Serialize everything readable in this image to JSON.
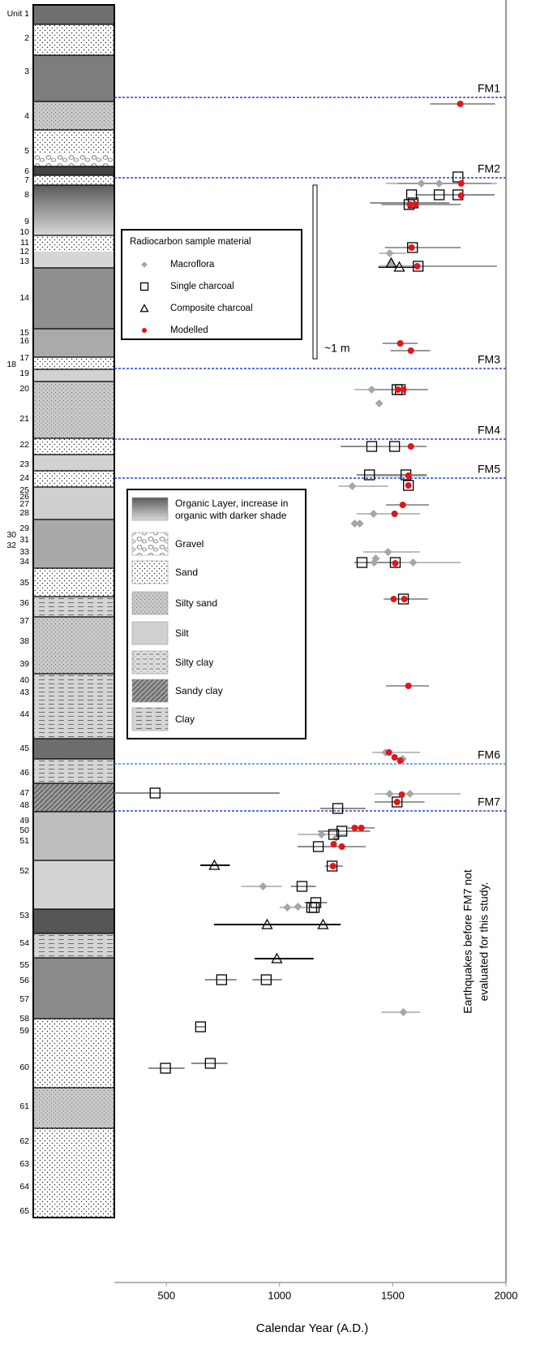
{
  "chart_data": {
    "type": "scatter",
    "x_label": "Calendar Year (A.D.)",
    "xlim": [
      270,
      2000
    ],
    "xticks": [
      500,
      1000,
      1500,
      2000
    ],
    "units": [
      "Unit 1",
      "2",
      "3",
      "4",
      "5",
      "6",
      "7",
      "8",
      "9",
      "10",
      "11",
      "12",
      "13",
      "14",
      "15",
      "16",
      "17",
      "18",
      "19",
      "20",
      "21",
      "22",
      "23",
      "24",
      "25",
      "26",
      "27",
      "28",
      "29",
      "30",
      "31",
      "32",
      "33",
      "34",
      "35",
      "36",
      "37",
      "38",
      "39",
      "40",
      "43",
      "44",
      "45",
      "46",
      "47",
      "48",
      "49",
      "50",
      "51",
      "52",
      "53",
      "54",
      "55",
      "56",
      "57",
      "58",
      "59",
      "60",
      "61",
      "62",
      "63",
      "64",
      "65"
    ],
    "events": [
      "FM1",
      "FM2",
      "FM3",
      "FM4",
      "FM5",
      "FM6",
      "FM7"
    ],
    "legend_title": "Radiocarbon sample material",
    "series": [
      {
        "name": "Macroflora",
        "marker": "diamond",
        "color": "#a6a6a6",
        "range_color": "#bdbdbd",
        "x": [
          1626,
          1705,
          1486,
          1493,
          1407,
          1440,
          1321,
          1415,
          1354,
          1332,
          1479,
          1425,
          1418,
          1590,
          1468,
          1544,
          1486,
          1576,
          1185,
          1250,
          927,
          1034,
          1081,
          1547
        ],
        "ranges": [
          [
            1470,
            1960
          ],
          null,
          [
            1440,
            1560
          ],
          null,
          [
            1330,
            1530
          ],
          null,
          [
            1260,
            1480
          ],
          [
            1340,
            1620
          ],
          null,
          null,
          [
            1370,
            1620
          ],
          null,
          null,
          [
            1420,
            1800
          ],
          [
            1410,
            1620
          ],
          null,
          [
            1420,
            1800
          ],
          null,
          [
            1080,
            1300
          ],
          null,
          [
            830,
            1010
          ],
          [
            1000,
            1130
          ],
          null,
          [
            1450,
            1620
          ]
        ]
      },
      {
        "name": "Single charcoal",
        "marker": "square",
        "color": "#000000",
        "range_color": "#8c8c8c",
        "x": [
          1788,
          1788,
          1705,
          1583,
          1590,
          1572,
          1587,
          1612,
          1519,
          1533,
          1407,
          1508,
          1397,
          1558,
          1569,
          1364,
          1511,
          1547,
          450,
          1519,
          1257,
          1275,
          1239,
          1171,
          1232,
          1099,
          1160,
          1153,
          1142,
          744,
          941,
          651,
          694,
          496
        ],
        "ranges": [
          null,
          [
            1600,
            1950
          ],
          null,
          null,
          [
            1400,
            1750
          ],
          null,
          null,
          null,
          null,
          null,
          [
            1270,
            1560
          ],
          null,
          [
            1340,
            1530
          ],
          [
            1440,
            1650
          ],
          null,
          [
            1330,
            1530
          ],
          null,
          null,
          [
            270,
            1000
          ],
          null,
          [
            1180,
            1380
          ],
          [
            1170,
            1400
          ],
          null,
          [
            1080,
            1300
          ],
          null,
          [
            1050,
            1160
          ],
          [
            1110,
            1210
          ],
          null,
          null,
          [
            670,
            810
          ],
          [
            880,
            1010
          ],
          [
            630,
            670
          ],
          [
            610,
            770
          ],
          [
            420,
            580
          ]
        ]
      },
      {
        "name": "Composite charcoal",
        "marker": "triangle",
        "color": "#000000",
        "range_color": "#000000",
        "x": [
          1493,
          1529,
          712,
          945,
          1192,
          988
        ],
        "ranges": [
          null,
          [
            1437,
            1612
          ],
          [
            650,
            780
          ],
          [
            710,
            1270
          ],
          null,
          [
            890,
            1150
          ]
        ]
      },
      {
        "name": "Modelled",
        "marker": "dot",
        "color": "#e0161b",
        "range_color": "#9a9a9a",
        "x": [
          1798,
          1802,
          1802,
          1576,
          1601,
          1583,
          1608,
          1533,
          1580,
          1522,
          1547,
          1580,
          1569,
          1569,
          1544,
          1508,
          1511,
          1504,
          1551,
          1569,
          1483,
          1508,
          1533,
          1540,
          1519,
          1332,
          1361,
          1239,
          1275,
          1236
        ],
        "ranges": [
          [
            1665,
            1952
          ],
          [
            1522,
            1935
          ],
          null,
          [
            1450,
            1800
          ],
          null,
          [
            1465,
            1800
          ],
          [
            1440,
            1960
          ],
          [
            1455,
            1610
          ],
          [
            1490,
            1665
          ],
          null,
          [
            1410,
            1655
          ],
          [
            1370,
            1650
          ],
          [
            1380,
            1650
          ],
          null,
          [
            1470,
            1660
          ],
          null,
          null,
          [
            1460,
            1655
          ],
          null,
          [
            1470,
            1660
          ],
          null,
          null,
          null,
          null,
          [
            1420,
            1640
          ],
          null,
          [
            1300,
            1420
          ],
          null,
          [
            1240,
            1380
          ],
          [
            1200,
            1280
          ]
        ]
      }
    ],
    "lithology_legend": [
      [
        "Organic Layer, increase in",
        "organic with darker shade"
      ],
      [
        "Gravel"
      ],
      [
        "Sand"
      ],
      [
        "Silty sand"
      ],
      [
        "Silt"
      ],
      [
        "Silty clay"
      ],
      [
        "Sandy clay"
      ],
      [
        "Clay"
      ]
    ],
    "scale_label": "~1 m",
    "note": [
      "Earthquakes before FM7 not",
      "evaluated for this study."
    ]
  }
}
